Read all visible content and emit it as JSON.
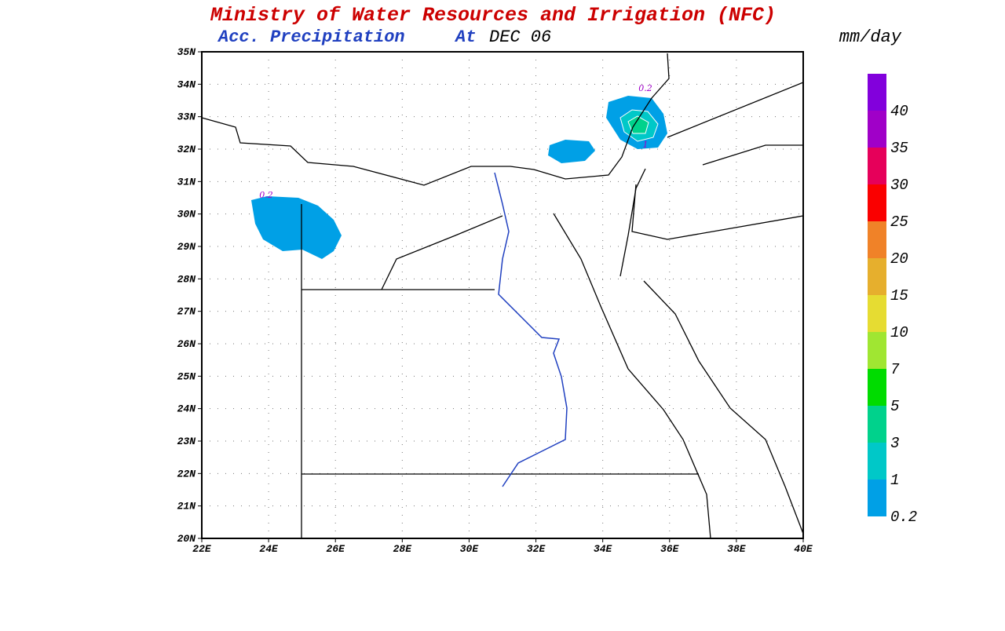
{
  "header": {
    "title": "Ministry of Water Resources and Irrigation (NFC)",
    "subtitle": "Acc. Precipitation",
    "at": "At",
    "date": "DEC 06",
    "units": "mm/day"
  },
  "map": {
    "lat_ticks": [
      "20N",
      "21N",
      "22N",
      "23N",
      "24N",
      "25N",
      "26N",
      "27N",
      "28N",
      "29N",
      "30N",
      "31N",
      "32N",
      "33N",
      "34N",
      "35N"
    ],
    "lon_ticks": [
      "22E",
      "24E",
      "26E",
      "28E",
      "30E",
      "32E",
      "34E",
      "36E",
      "38E",
      "40E"
    ],
    "contour_labels": [
      "0.2",
      "0.2",
      "1"
    ]
  },
  "colorbar": {
    "labels": [
      "0.2",
      "1",
      "3",
      "5",
      "7",
      "10",
      "15",
      "20",
      "25",
      "30",
      "35",
      "40"
    ],
    "colors": [
      "#00a0e6",
      "#00c8c8",
      "#00d28c",
      "#00dc00",
      "#a0e632",
      "#e6dc32",
      "#e6af2d",
      "#f08228",
      "#fa0000",
      "#e6005a",
      "#a000c8",
      "#8200dc"
    ]
  }
}
